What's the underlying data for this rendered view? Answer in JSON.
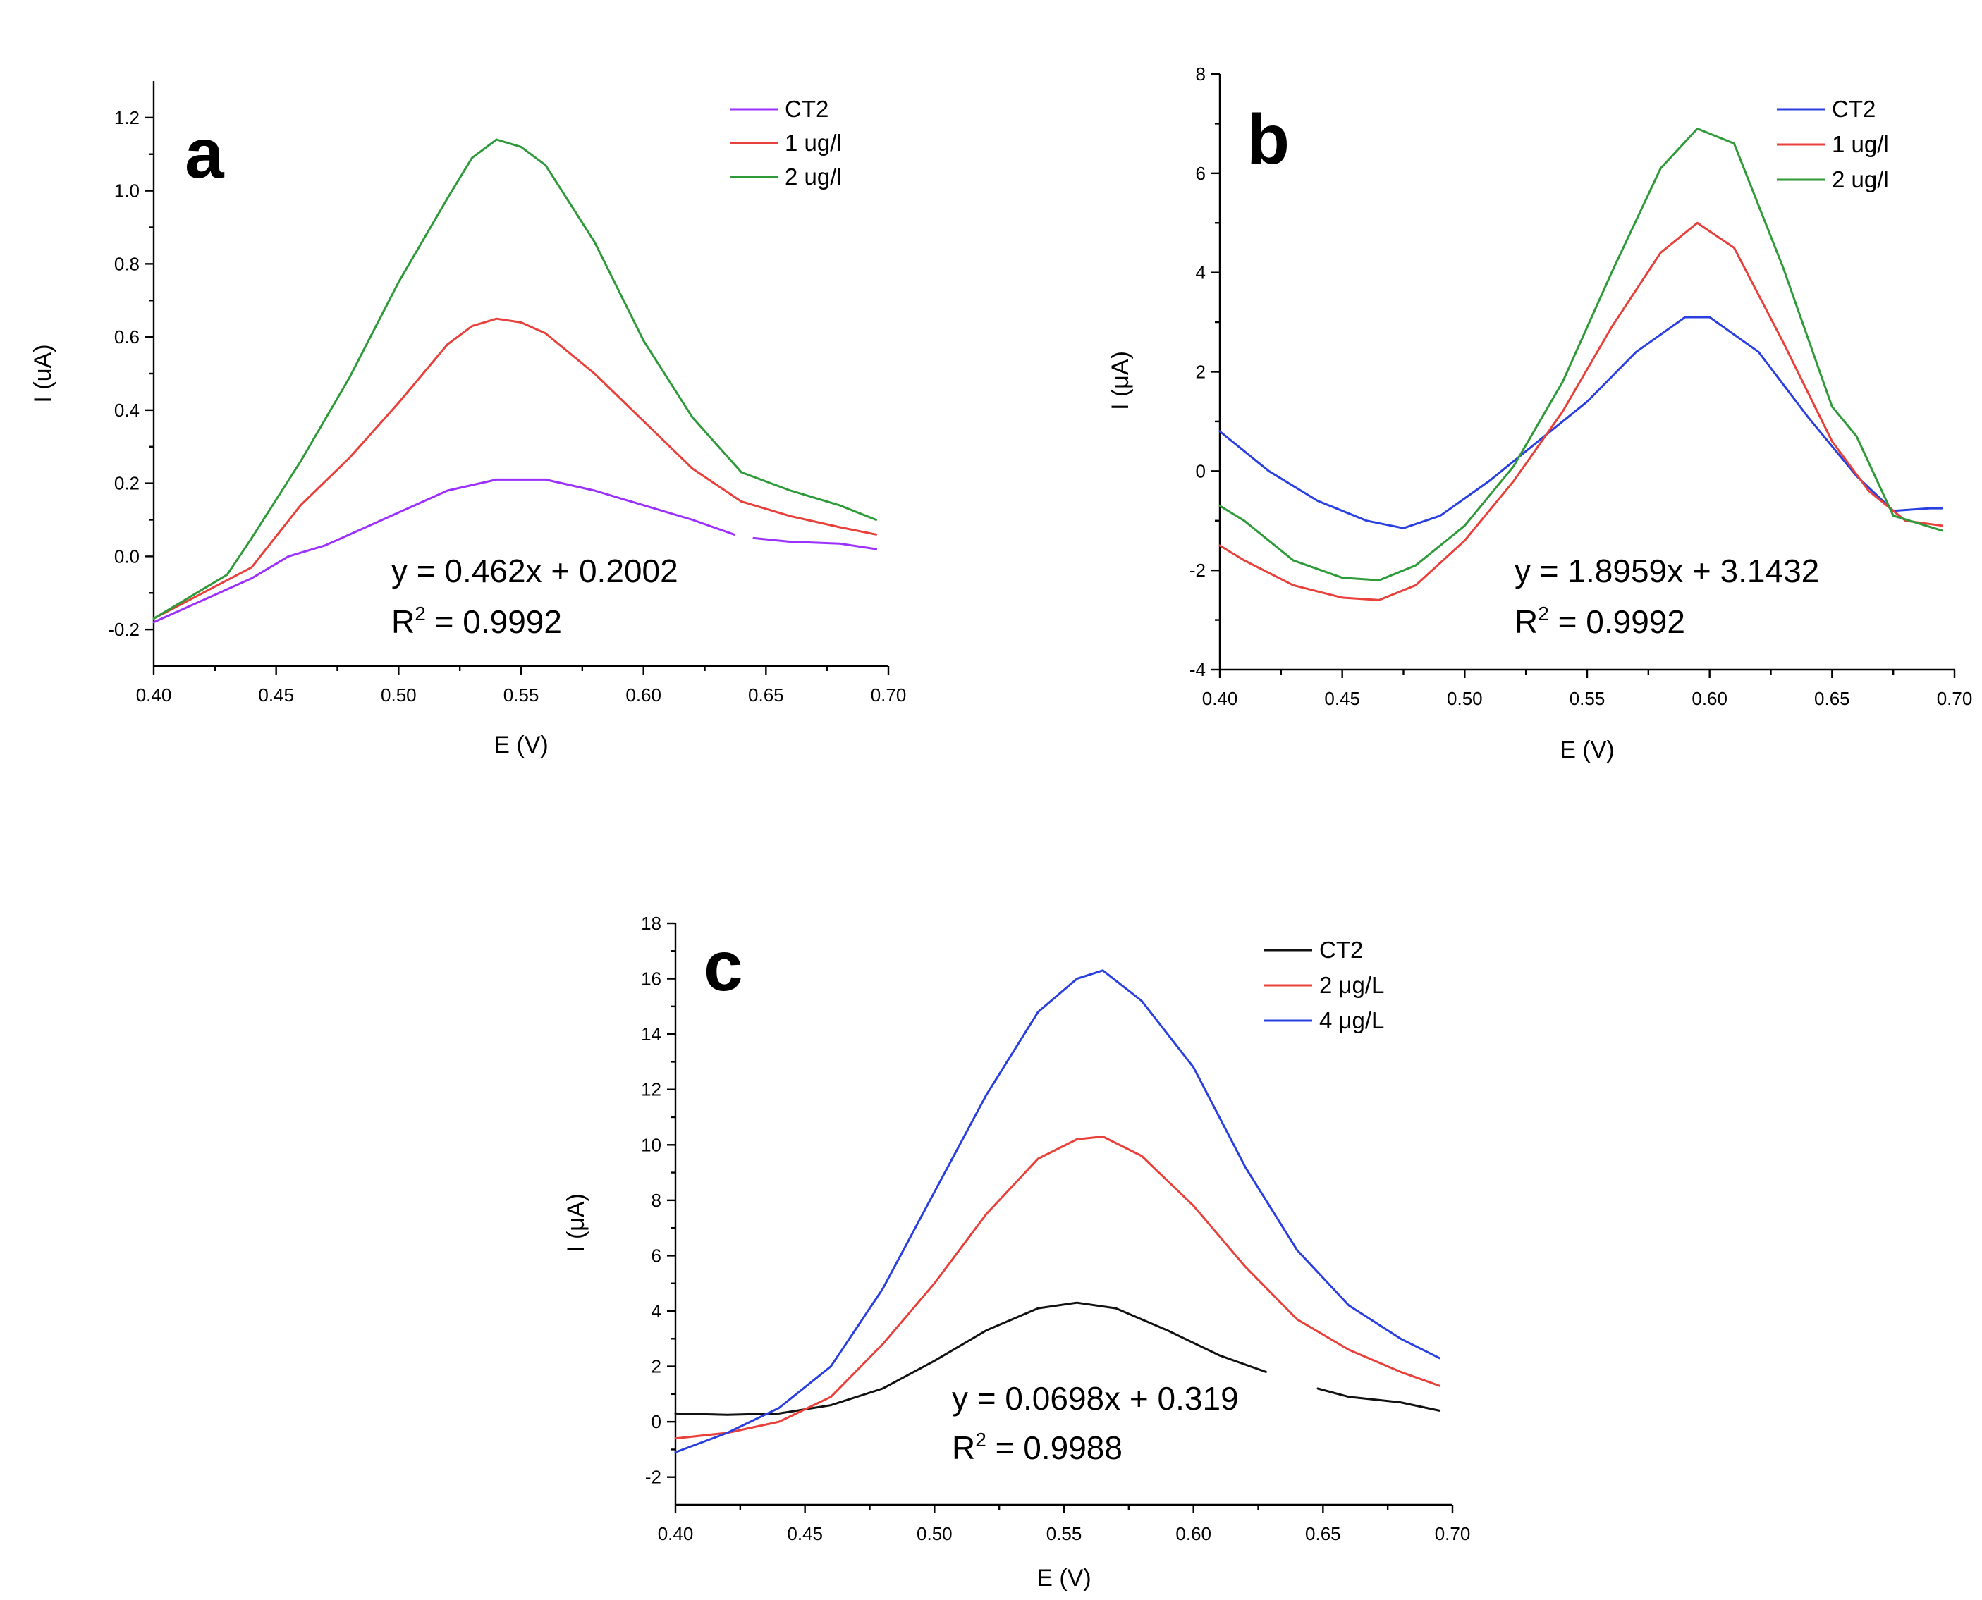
{
  "chart_data": [
    {
      "type": "line",
      "panel_label": "a",
      "xlabel": "E (V)",
      "ylabel": "I (uA)",
      "xlim": [
        0.4,
        0.7
      ],
      "ylim": [
        -0.3,
        1.3
      ],
      "xticks": [
        0.4,
        0.45,
        0.5,
        0.55,
        0.6,
        0.65,
        0.7
      ],
      "xtick_labels": [
        "0.40",
        "0.45",
        "0.50",
        "0.55",
        "0.60",
        "0.65",
        "0.70"
      ],
      "yticks": [
        -0.2,
        0.0,
        0.2,
        0.4,
        0.6,
        0.8,
        1.0,
        1.2
      ],
      "ytick_labels": [
        "-0.2",
        "0.0",
        "0.2",
        "0.4",
        "0.6",
        "0.8",
        "1.0",
        "1.2"
      ],
      "equation": "y = 0.462x + 0.2002",
      "r2_value": "0.9992",
      "legend_position": "top-right",
      "series": [
        {
          "name": "CT2",
          "color": "#9b30ff",
          "x": [
            0.4,
            0.42,
            0.44,
            0.455,
            0.47,
            0.48,
            0.5,
            0.52,
            0.54,
            0.56,
            0.58,
            0.6,
            0.62,
            0.637,
            null,
            0.645,
            0.66,
            0.68,
            0.695
          ],
          "y": [
            -0.18,
            -0.12,
            -0.06,
            0.0,
            0.03,
            0.06,
            0.12,
            0.18,
            0.21,
            0.21,
            0.18,
            0.14,
            0.1,
            0.06,
            null,
            0.05,
            0.04,
            0.035,
            0.02
          ]
        },
        {
          "name": "1 ug/l",
          "color": "#e8403a",
          "x": [
            0.4,
            0.42,
            0.44,
            0.46,
            0.48,
            0.5,
            0.52,
            0.53,
            0.54,
            0.55,
            0.56,
            0.58,
            0.6,
            0.62,
            0.64,
            0.66,
            0.68,
            0.695
          ],
          "y": [
            -0.17,
            -0.1,
            -0.03,
            0.14,
            0.27,
            0.42,
            0.58,
            0.63,
            0.65,
            0.64,
            0.61,
            0.5,
            0.37,
            0.24,
            0.15,
            0.11,
            0.08,
            0.06
          ]
        },
        {
          "name": "2 ug/l",
          "color": "#2e9a3a",
          "x": [
            0.4,
            0.42,
            0.43,
            0.44,
            0.46,
            0.48,
            0.5,
            0.52,
            0.53,
            0.54,
            0.55,
            0.56,
            0.58,
            0.6,
            0.62,
            0.64,
            0.66,
            0.68,
            0.695
          ],
          "y": [
            -0.17,
            -0.09,
            -0.05,
            0.05,
            0.26,
            0.49,
            0.75,
            0.98,
            1.09,
            1.14,
            1.12,
            1.07,
            0.86,
            0.59,
            0.38,
            0.23,
            0.18,
            0.14,
            0.1
          ]
        }
      ]
    },
    {
      "type": "line",
      "panel_label": "b",
      "xlabel": "E (V)",
      "ylabel": "I (μA)",
      "xlim": [
        0.4,
        0.7
      ],
      "ylim": [
        -4,
        8
      ],
      "xticks": [
        0.4,
        0.45,
        0.5,
        0.55,
        0.6,
        0.65,
        0.7
      ],
      "xtick_labels": [
        "0.40",
        "0.45",
        "0.50",
        "0.55",
        "0.60",
        "0.65",
        "0.70"
      ],
      "yticks": [
        -4,
        -2,
        0,
        2,
        4,
        6,
        8
      ],
      "ytick_labels": [
        "-4",
        "-2",
        "0",
        "2",
        "4",
        "6",
        "8"
      ],
      "equation": "y = 1.8959x + 3.1432",
      "r2_value": "0.9992",
      "legend_position": "top-right",
      "series": [
        {
          "name": "CT2",
          "color": "#2a3fe0",
          "x": [
            0.4,
            0.42,
            0.44,
            0.46,
            0.475,
            0.49,
            0.51,
            0.53,
            0.55,
            0.57,
            0.59,
            0.6,
            0.62,
            0.64,
            0.66,
            0.675,
            0.69,
            0.695
          ],
          "y": [
            0.8,
            0.0,
            -0.6,
            -1.0,
            -1.15,
            -0.9,
            -0.2,
            0.6,
            1.4,
            2.4,
            3.1,
            3.1,
            2.4,
            1.1,
            -0.1,
            -0.8,
            -0.75,
            -0.75
          ]
        },
        {
          "name": "1 ug/l",
          "color": "#e8403a",
          "x": [
            0.4,
            0.41,
            0.43,
            0.45,
            0.465,
            0.48,
            0.5,
            0.52,
            0.54,
            0.56,
            0.58,
            0.595,
            0.61,
            0.63,
            0.65,
            0.665,
            0.68,
            0.695
          ],
          "y": [
            -1.5,
            -1.8,
            -2.3,
            -2.55,
            -2.6,
            -2.3,
            -1.4,
            -0.2,
            1.2,
            2.9,
            4.4,
            5.0,
            4.5,
            2.6,
            0.6,
            -0.4,
            -1.0,
            -1.1
          ]
        },
        {
          "name": "2 ug/l",
          "color": "#2e9a3a",
          "x": [
            0.4,
            0.41,
            0.43,
            0.45,
            0.465,
            0.48,
            0.5,
            0.52,
            0.54,
            0.56,
            0.58,
            0.595,
            0.61,
            0.63,
            0.65,
            0.66,
            0.675,
            0.695
          ],
          "y": [
            -0.7,
            -1.0,
            -1.8,
            -2.15,
            -2.2,
            -1.9,
            -1.1,
            0.1,
            1.8,
            4.0,
            6.1,
            6.9,
            6.6,
            4.1,
            1.3,
            0.7,
            -0.9,
            -1.2
          ]
        }
      ]
    },
    {
      "type": "line",
      "panel_label": "c",
      "xlabel": "E (V)",
      "ylabel": "I (μA)",
      "xlim": [
        0.4,
        0.7
      ],
      "ylim": [
        -3,
        18
      ],
      "xticks": [
        0.4,
        0.45,
        0.5,
        0.55,
        0.6,
        0.65,
        0.7
      ],
      "xtick_labels": [
        "0.40",
        "0.45",
        "0.50",
        "0.55",
        "0.60",
        "0.65",
        "0.70"
      ],
      "yticks": [
        -2,
        0,
        2,
        4,
        6,
        8,
        10,
        12,
        14,
        16,
        18
      ],
      "ytick_labels": [
        "-2",
        "0",
        "2",
        "4",
        "6",
        "8",
        "10",
        "12",
        "14",
        "16",
        "18"
      ],
      "equation": "y = 0.0698x + 0.319",
      "r2_value": "0.9988",
      "legend_position": "top-right",
      "series": [
        {
          "name": "CT2",
          "color": "#111111",
          "x": [
            0.4,
            0.42,
            0.44,
            0.46,
            0.48,
            0.5,
            0.52,
            0.54,
            0.555,
            0.57,
            0.59,
            0.61,
            0.628,
            null,
            0.648,
            0.66,
            0.68,
            0.695
          ],
          "y": [
            0.3,
            0.25,
            0.3,
            0.6,
            1.2,
            2.2,
            3.3,
            4.1,
            4.3,
            4.1,
            3.3,
            2.4,
            1.8,
            null,
            1.2,
            0.9,
            0.7,
            0.4
          ]
        },
        {
          "name": "2 μg/L",
          "color": "#e8403a",
          "x": [
            0.4,
            0.42,
            0.44,
            0.46,
            0.48,
            0.5,
            0.52,
            0.54,
            0.555,
            0.565,
            0.58,
            0.6,
            0.62,
            0.64,
            0.66,
            0.68,
            0.695
          ],
          "y": [
            -0.6,
            -0.4,
            0.0,
            0.9,
            2.8,
            5.0,
            7.5,
            9.5,
            10.2,
            10.3,
            9.6,
            7.8,
            5.6,
            3.7,
            2.6,
            1.8,
            1.3
          ]
        },
        {
          "name": "4 μg/L",
          "color": "#2a3fe0",
          "x": [
            0.4,
            0.42,
            0.44,
            0.46,
            0.48,
            0.5,
            0.52,
            0.54,
            0.555,
            0.565,
            0.58,
            0.6,
            0.62,
            0.64,
            0.66,
            0.68,
            0.695
          ],
          "y": [
            -1.1,
            -0.4,
            0.5,
            2.0,
            4.8,
            8.3,
            11.8,
            14.8,
            16.0,
            16.3,
            15.2,
            12.8,
            9.2,
            6.2,
            4.2,
            3.0,
            2.3
          ]
        }
      ]
    }
  ]
}
